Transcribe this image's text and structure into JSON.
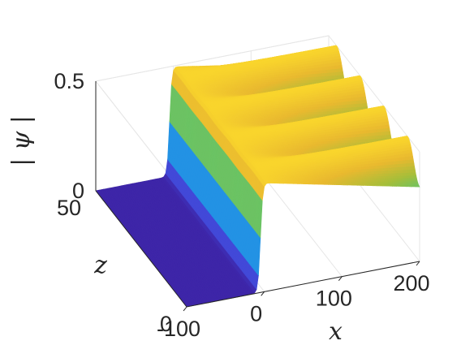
{
  "chart_data": {
    "type": "surface",
    "title": "",
    "xlabel": "x",
    "ylabel": "z",
    "zlabel": "| ψ |",
    "xlim": [
      -100,
      200
    ],
    "ylim": [
      0,
      50
    ],
    "zlim": [
      0,
      0.5
    ],
    "x_ticks": [
      -100,
      0,
      100,
      200
    ],
    "x_tick_labels": [
      "-100",
      "0",
      "100",
      "200"
    ],
    "y_ticks": [
      0,
      50
    ],
    "y_tick_labels": [
      "0",
      "50"
    ],
    "z_ticks": [
      0,
      0.5
    ],
    "z_tick_labels": [
      "0",
      "0.5"
    ],
    "colormap": "parula",
    "colormap_stops": [
      "#3e26a8",
      "#4353e6",
      "#2f7cf4",
      "#1c9fdb",
      "#0bb9b2",
      "#4cc57a",
      "#a5be3a",
      "#e9b92f",
      "#f9d52d"
    ],
    "grid": true,
    "surface": {
      "x_front": -5,
      "front_width": 3,
      "amplitude_flat": 0.0,
      "amplitude_max": 0.5,
      "oscillation_period": 13,
      "oscillation_depth": 0.32
    }
  }
}
